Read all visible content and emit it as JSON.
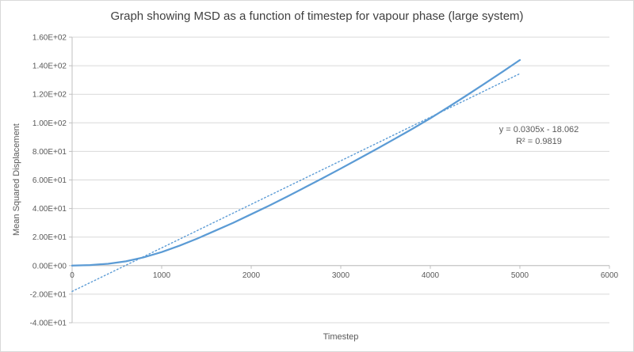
{
  "chart_data": {
    "type": "line",
    "title": "Graph showing MSD as a function of timestep for vapour phase (large system)",
    "xlabel": "Timestep",
    "ylabel": "Mean Squared Displacement",
    "xlim": [
      0,
      6000
    ],
    "ylim": [
      -40,
      160
    ],
    "grid": "horizontal",
    "legend": "none",
    "colors": {
      "grid": "#d9d9d9",
      "axis": "#bfbfbf",
      "text": "#595959"
    },
    "x_ticks": {
      "values": [
        0,
        1000,
        2000,
        3000,
        4000,
        5000,
        6000
      ],
      "labels": [
        "0",
        "1000",
        "2000",
        "3000",
        "4000",
        "5000",
        "6000"
      ]
    },
    "y_ticks": {
      "values": [
        160,
        140,
        120,
        100,
        80,
        60,
        40,
        20,
        0,
        -20,
        -40
      ],
      "labels": [
        "1.60E+02",
        "1.40E+02",
        "1.20E+02",
        "1.00E+02",
        "8.00E+01",
        "6.00E+01",
        "4.00E+01",
        "2.00E+01",
        "0.00E+00",
        "-2.00E+01",
        "-4.00E+01"
      ]
    },
    "series": {
      "style": "solid",
      "color": "#5b9bd5",
      "x": [
        0,
        200,
        400,
        600,
        800,
        1000,
        1200,
        1400,
        1600,
        1800,
        2000,
        2200,
        2400,
        2600,
        2800,
        3000,
        3200,
        3400,
        3600,
        3800,
        4000,
        4200,
        4400,
        4600,
        4800,
        5000
      ],
      "y": [
        0,
        0.4,
        1.3,
        3.0,
        5.8,
        9.5,
        14.0,
        19.0,
        24.5,
        30.0,
        36.0,
        42.0,
        48.3,
        54.8,
        61.3,
        68.0,
        74.8,
        81.7,
        88.7,
        95.8,
        103.2,
        111.0,
        119.0,
        127.2,
        135.5,
        144.0
      ]
    },
    "trendline": {
      "style": "dotted",
      "color": "#5b9bd5",
      "slope": 0.0305,
      "intercept": -18.062,
      "x_range": [
        0,
        5000
      ],
      "equation_label": "y = 0.0305x - 18.062",
      "r2_label": "R² = 0.9819"
    }
  }
}
